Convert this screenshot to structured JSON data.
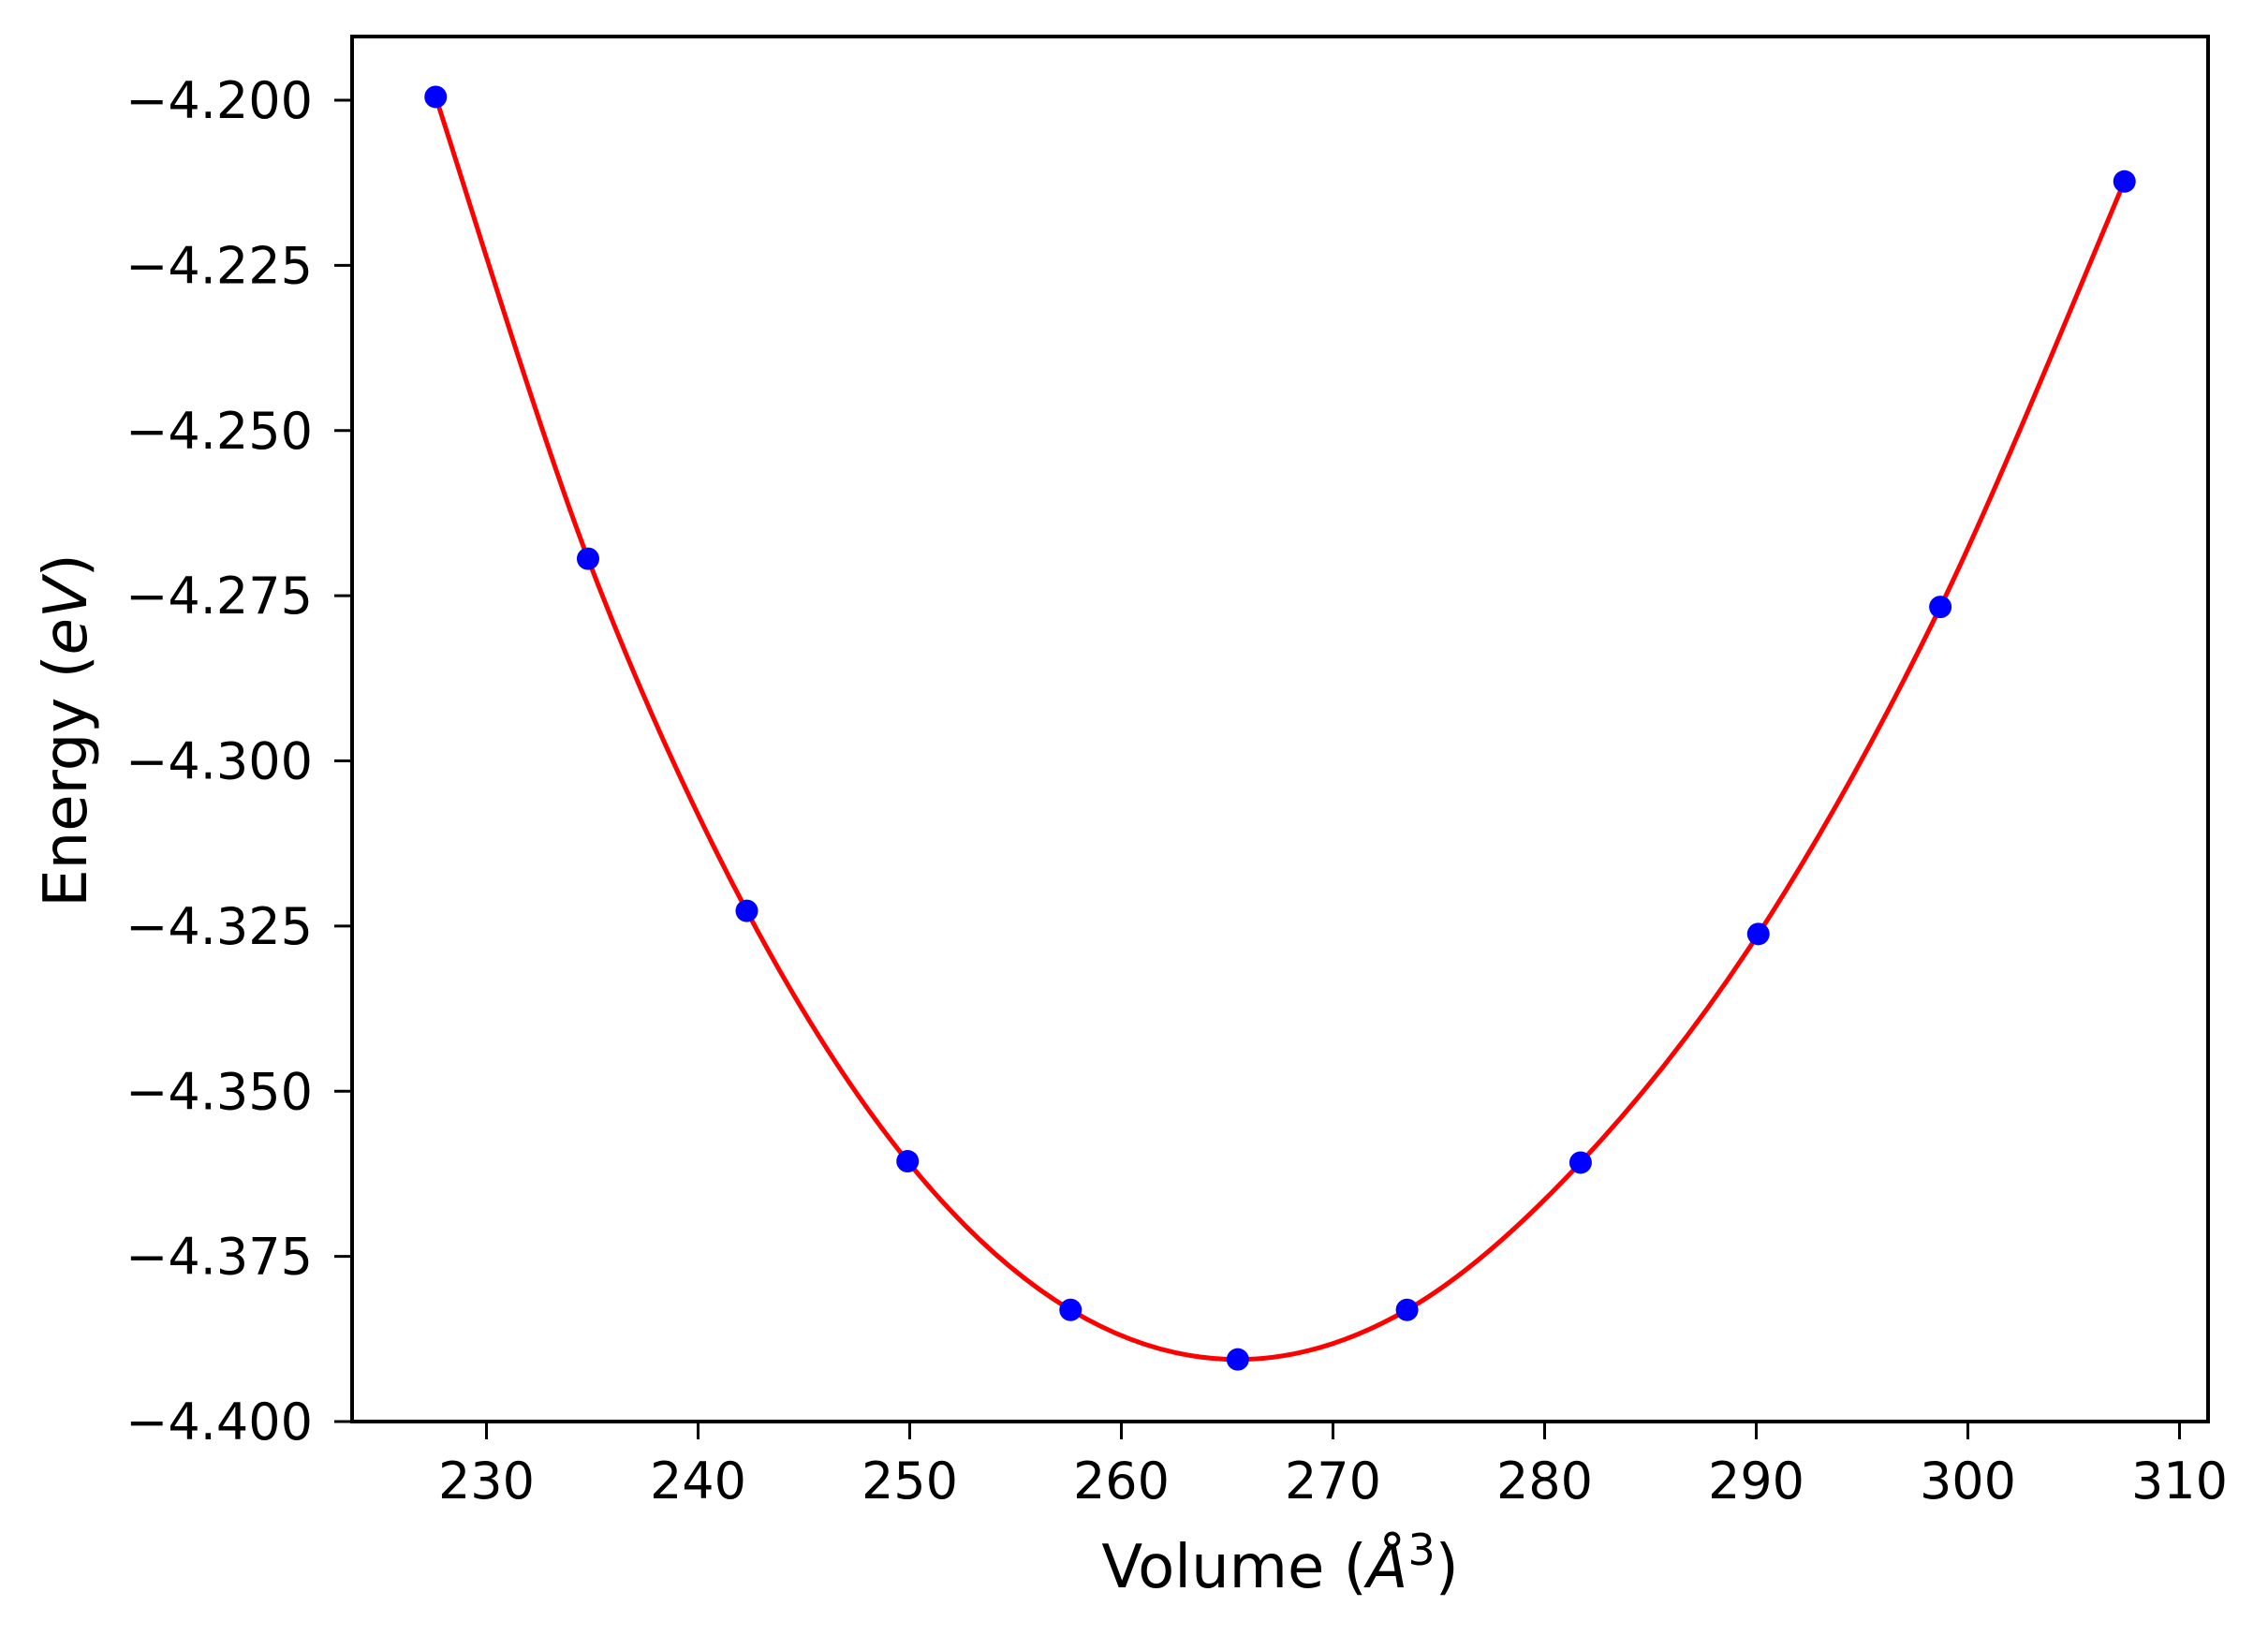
{
  "chart_data": {
    "type": "scatter",
    "title": "",
    "xlabel": "Volume (",
    "xlabel_symbol": "Å",
    "xlabel_sup": "3",
    "xlabel_end": ")",
    "ylabel": "Energy (",
    "ylabel_symbol": "eV",
    "ylabel_end": ")",
    "xlim": [
      223.6,
      311.4
    ],
    "ylim": [
      -4.4,
      -4.1905
    ],
    "xticks": [
      230,
      240,
      250,
      260,
      270,
      280,
      290,
      300,
      310
    ],
    "xtick_labels": [
      "230",
      "240",
      "250",
      "260",
      "270",
      "280",
      "290",
      "300",
      "310"
    ],
    "yticks": [
      -4.2,
      -4.225,
      -4.25,
      -4.275,
      -4.3,
      -4.325,
      -4.35,
      -4.375,
      -4.4
    ],
    "ytick_labels": [
      "−4.200",
      "−4.225",
      "−4.250",
      "−4.275",
      "−4.300",
      "−4.325",
      "−4.350",
      "−4.375",
      "−4.400"
    ],
    "grid": false,
    "series": [
      {
        "style": "markers",
        "color": "#0000ff",
        "x": [
          227.6,
          234.8,
          242.3,
          249.9,
          257.6,
          265.5,
          273.5,
          281.7,
          290.1,
          298.7,
          307.4
        ],
        "y": [
          -4.1995,
          -4.2694,
          -4.3227,
          -4.3606,
          -4.3831,
          -4.3906,
          -4.3831,
          -4.3608,
          -4.3262,
          -4.2767,
          -4.2123
        ]
      },
      {
        "style": "fit-line",
        "color": "#ff0000"
      }
    ]
  }
}
